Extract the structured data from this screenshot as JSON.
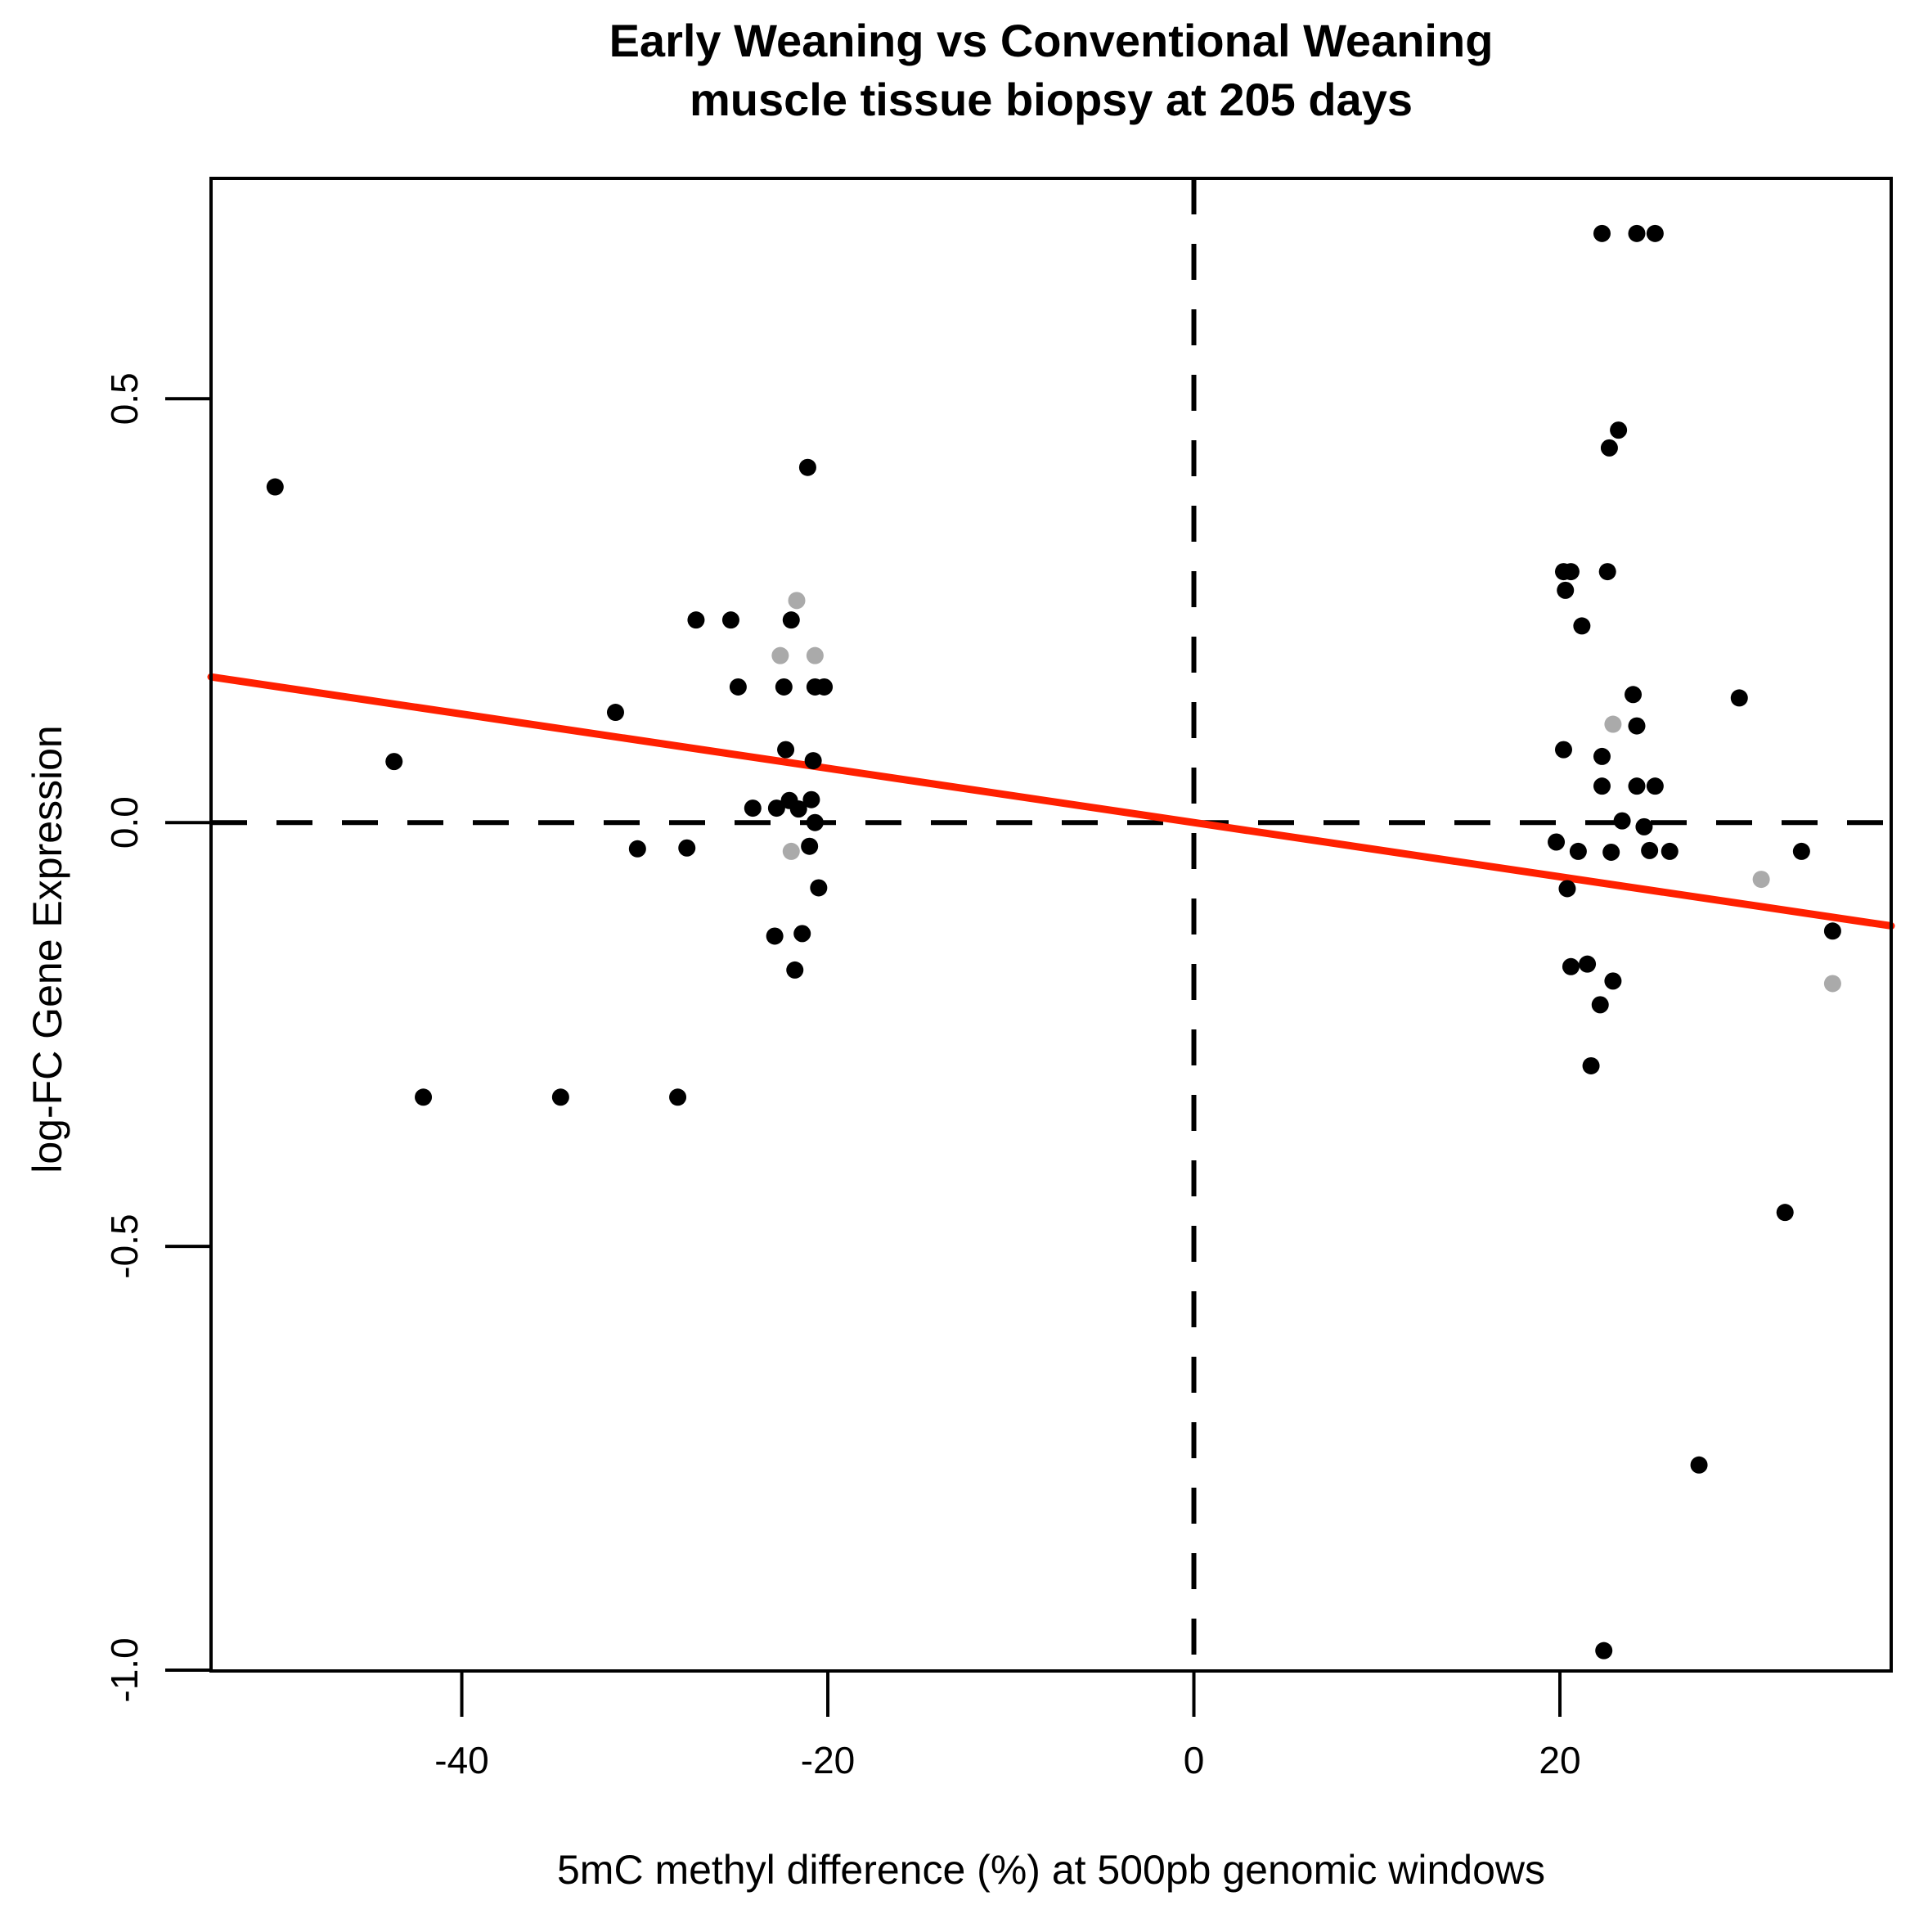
{
  "figure": {
    "title_line1": "Early Weaning vs Conventional Weaning",
    "title_line2": "muscle tissue biopsy at 205 days",
    "xlabel": "5mC methyl difference (%) at 500pb genomic windows",
    "ylabel": "log-FC Gene Expression"
  },
  "chart_data": {
    "type": "scatter",
    "title": "Early Weaning vs Conventional Weaning muscle tissue biopsy at 205 days",
    "xlabel": "5mC methyl difference (%) at 500pb genomic windows",
    "ylabel": "log-FC Gene Expression",
    "xlim": [
      -53.7,
      38.1
    ],
    "ylim": [
      -1.001,
      0.76
    ],
    "x_ticks": [
      -40,
      -20,
      0,
      20
    ],
    "y_ticks": [
      0.5,
      0.0,
      -0.5,
      -1.0
    ],
    "x_tick_labels": [
      "-40",
      "-20",
      "0",
      "20"
    ],
    "y_tick_labels": [
      "0.5",
      "0.0",
      "-0.5",
      "-1.0"
    ],
    "grid": false,
    "legend": "none",
    "reference_lines": {
      "horizontal_y": 0,
      "vertical_x": 0,
      "style": "dashed",
      "color": "#000000"
    },
    "regression_line": {
      "slope": -0.0032,
      "intercept": 0.0,
      "color": "#ff2000"
    },
    "colors": {
      "point_black": "#000000",
      "point_grey": "#aaaaaa",
      "axis": "#000000",
      "background": "#ffffff"
    },
    "series": [
      {
        "name": "black-points",
        "color": "#000000",
        "points": [
          [
            -50.2,
            0.396
          ],
          [
            -43.7,
            0.072
          ],
          [
            -42.1,
            -0.324
          ],
          [
            -34.6,
            -0.324
          ],
          [
            -31.6,
            0.13
          ],
          [
            -30.4,
            -0.031
          ],
          [
            -28.2,
            -0.324
          ],
          [
            -27.7,
            -0.03
          ],
          [
            -27.2,
            0.239
          ],
          [
            -25.3,
            0.239
          ],
          [
            -24.9,
            0.16
          ],
          [
            -24.1,
            0.017
          ],
          [
            -22.9,
            -0.134
          ],
          [
            -22.8,
            0.017
          ],
          [
            -22.4,
            0.16
          ],
          [
            -22.3,
            0.086
          ],
          [
            -22.1,
            0.026
          ],
          [
            -22.0,
            0.239
          ],
          [
            -21.8,
            -0.174
          ],
          [
            -21.6,
            0.016
          ],
          [
            -21.4,
            -0.131
          ],
          [
            -21.1,
            0.419
          ],
          [
            -21.0,
            -0.028
          ],
          [
            -20.9,
            0.027
          ],
          [
            -20.8,
            0.073
          ],
          [
            -20.7,
            0.16
          ],
          [
            -20.7,
            0.0
          ],
          [
            -20.5,
            -0.077
          ],
          [
            -20.2,
            0.16
          ],
          [
            19.8,
            -0.023
          ],
          [
            20.2,
            0.296
          ],
          [
            20.6,
            0.296
          ],
          [
            20.3,
            0.274
          ],
          [
            20.2,
            0.086
          ],
          [
            20.4,
            -0.078
          ],
          [
            20.6,
            -0.17
          ],
          [
            21.0,
            -0.034
          ],
          [
            21.2,
            0.232
          ],
          [
            21.5,
            -0.167
          ],
          [
            21.7,
            -0.287
          ],
          [
            22.2,
            -0.215
          ],
          [
            22.3,
            0.695
          ],
          [
            22.3,
            0.078
          ],
          [
            22.3,
            0.043
          ],
          [
            22.4,
            -0.977
          ],
          [
            22.6,
            0.296
          ],
          [
            22.7,
            0.442
          ],
          [
            22.8,
            -0.035
          ],
          [
            22.9,
            -0.187
          ],
          [
            23.2,
            0.463
          ],
          [
            23.4,
            0.002
          ],
          [
            24.0,
            0.151
          ],
          [
            24.2,
            0.695
          ],
          [
            24.2,
            0.114
          ],
          [
            24.2,
            0.043
          ],
          [
            24.6,
            -0.005
          ],
          [
            24.9,
            -0.033
          ],
          [
            25.2,
            0.695
          ],
          [
            25.2,
            0.043
          ],
          [
            26.0,
            -0.034
          ],
          [
            27.6,
            -0.758
          ],
          [
            29.8,
            0.147
          ],
          [
            32.3,
            -0.46
          ],
          [
            33.2,
            -0.034
          ],
          [
            34.9,
            -0.128
          ]
        ]
      },
      {
        "name": "grey-points",
        "color": "#aaaaaa",
        "points": [
          [
            -22.6,
            0.197
          ],
          [
            -21.7,
            0.262
          ],
          [
            -20.7,
            0.197
          ],
          [
            -22.0,
            -0.034
          ],
          [
            22.9,
            0.116
          ],
          [
            31.0,
            -0.067
          ],
          [
            34.9,
            -0.19
          ]
        ]
      }
    ]
  }
}
